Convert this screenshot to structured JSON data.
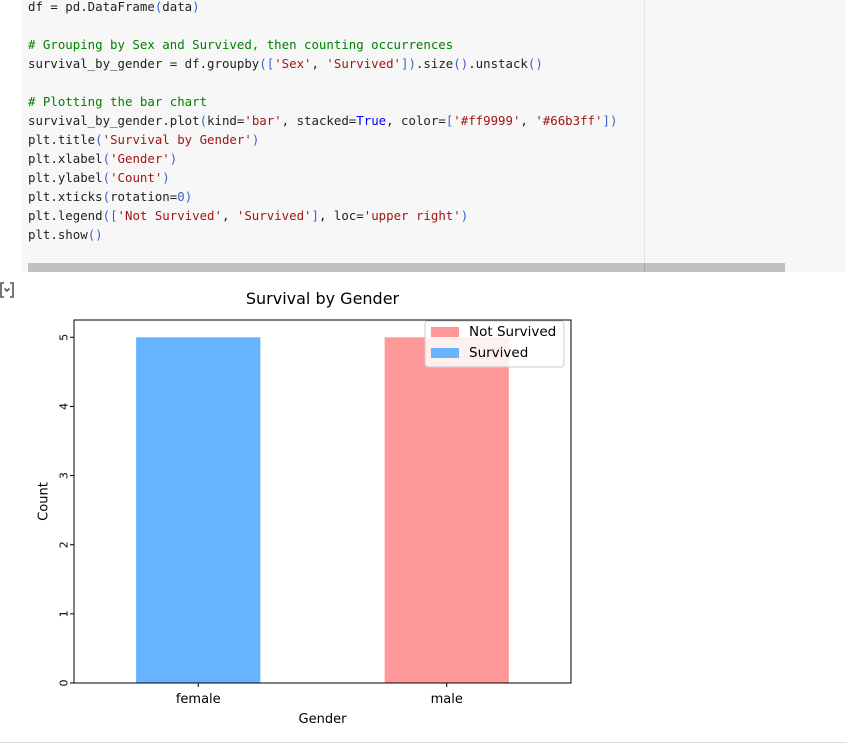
{
  "code_cell": {
    "lines": [
      [
        {
          "t": "df = pd.DataFrame"
        },
        {
          "t": "(",
          "c": "pn"
        },
        {
          "t": "data"
        },
        {
          "t": ")",
          "c": "pn"
        }
      ],
      [],
      [
        {
          "t": "# Grouping by Sex and Survived, then counting occurrences",
          "c": "cm"
        }
      ],
      [
        {
          "t": "survival_by_gender = df.groupby"
        },
        {
          "t": "([",
          "c": "pn"
        },
        {
          "t": "'Sex'",
          "c": "st"
        },
        {
          "t": ", "
        },
        {
          "t": "'Survived'",
          "c": "st"
        },
        {
          "t": "])",
          "c": "pn"
        },
        {
          "t": ".size"
        },
        {
          "t": "()",
          "c": "pn"
        },
        {
          "t": ".unstack"
        },
        {
          "t": "()",
          "c": "pn"
        }
      ],
      [],
      [
        {
          "t": "# Plotting the bar chart",
          "c": "cm"
        }
      ],
      [
        {
          "t": "survival_by_gender.plot"
        },
        {
          "t": "(",
          "c": "pn"
        },
        {
          "t": "kind="
        },
        {
          "t": "'bar'",
          "c": "st"
        },
        {
          "t": ", stacked="
        },
        {
          "t": "True",
          "c": "kw"
        },
        {
          "t": ", color="
        },
        {
          "t": "[",
          "c": "pn"
        },
        {
          "t": "'#ff9999'",
          "c": "st"
        },
        {
          "t": ", "
        },
        {
          "t": "'#66b3ff'",
          "c": "st"
        },
        {
          "t": "])",
          "c": "pn"
        }
      ],
      [
        {
          "t": "plt.title"
        },
        {
          "t": "(",
          "c": "pn"
        },
        {
          "t": "'Survival by Gender'",
          "c": "st"
        },
        {
          "t": ")",
          "c": "pn"
        }
      ],
      [
        {
          "t": "plt.xlabel"
        },
        {
          "t": "(",
          "c": "pn"
        },
        {
          "t": "'Gender'",
          "c": "st"
        },
        {
          "t": ")",
          "c": "pn"
        }
      ],
      [
        {
          "t": "plt.ylabel"
        },
        {
          "t": "(",
          "c": "pn"
        },
        {
          "t": "'Count'",
          "c": "st"
        },
        {
          "t": ")",
          "c": "pn"
        }
      ],
      [
        {
          "t": "plt.xticks"
        },
        {
          "t": "(",
          "c": "pn"
        },
        {
          "t": "rotation="
        },
        {
          "t": "0",
          "c": "pn"
        },
        {
          "t": ")",
          "c": "pn"
        }
      ],
      [
        {
          "t": "plt.legend"
        },
        {
          "t": "([",
          "c": "pn"
        },
        {
          "t": "'Not Survived'",
          "c": "st"
        },
        {
          "t": ", "
        },
        {
          "t": "'Survived'",
          "c": "st"
        },
        {
          "t": "]",
          "c": "pn"
        },
        {
          "t": ", loc="
        },
        {
          "t": "'upper right'",
          "c": "st"
        },
        {
          "t": ")",
          "c": "pn"
        }
      ],
      [
        {
          "t": "plt.show"
        },
        {
          "t": "()",
          "c": "pn"
        }
      ]
    ]
  },
  "output": {
    "icon": "output-toggle-icon"
  },
  "chart_data": {
    "type": "bar",
    "stacked": true,
    "title": "Survival by Gender",
    "xlabel": "Gender",
    "ylabel": "Count",
    "categories": [
      "female",
      "male"
    ],
    "series": [
      {
        "name": "Not Survived",
        "color": "#ff9999",
        "values": [
          0,
          5
        ]
      },
      {
        "name": "Survived",
        "color": "#66b3ff",
        "values": [
          5,
          0
        ]
      }
    ],
    "ylim": [
      0,
      5.25
    ],
    "yticks": [
      0,
      1,
      2,
      3,
      4,
      5
    ],
    "legend_position": "upper right",
    "grid": false
  }
}
